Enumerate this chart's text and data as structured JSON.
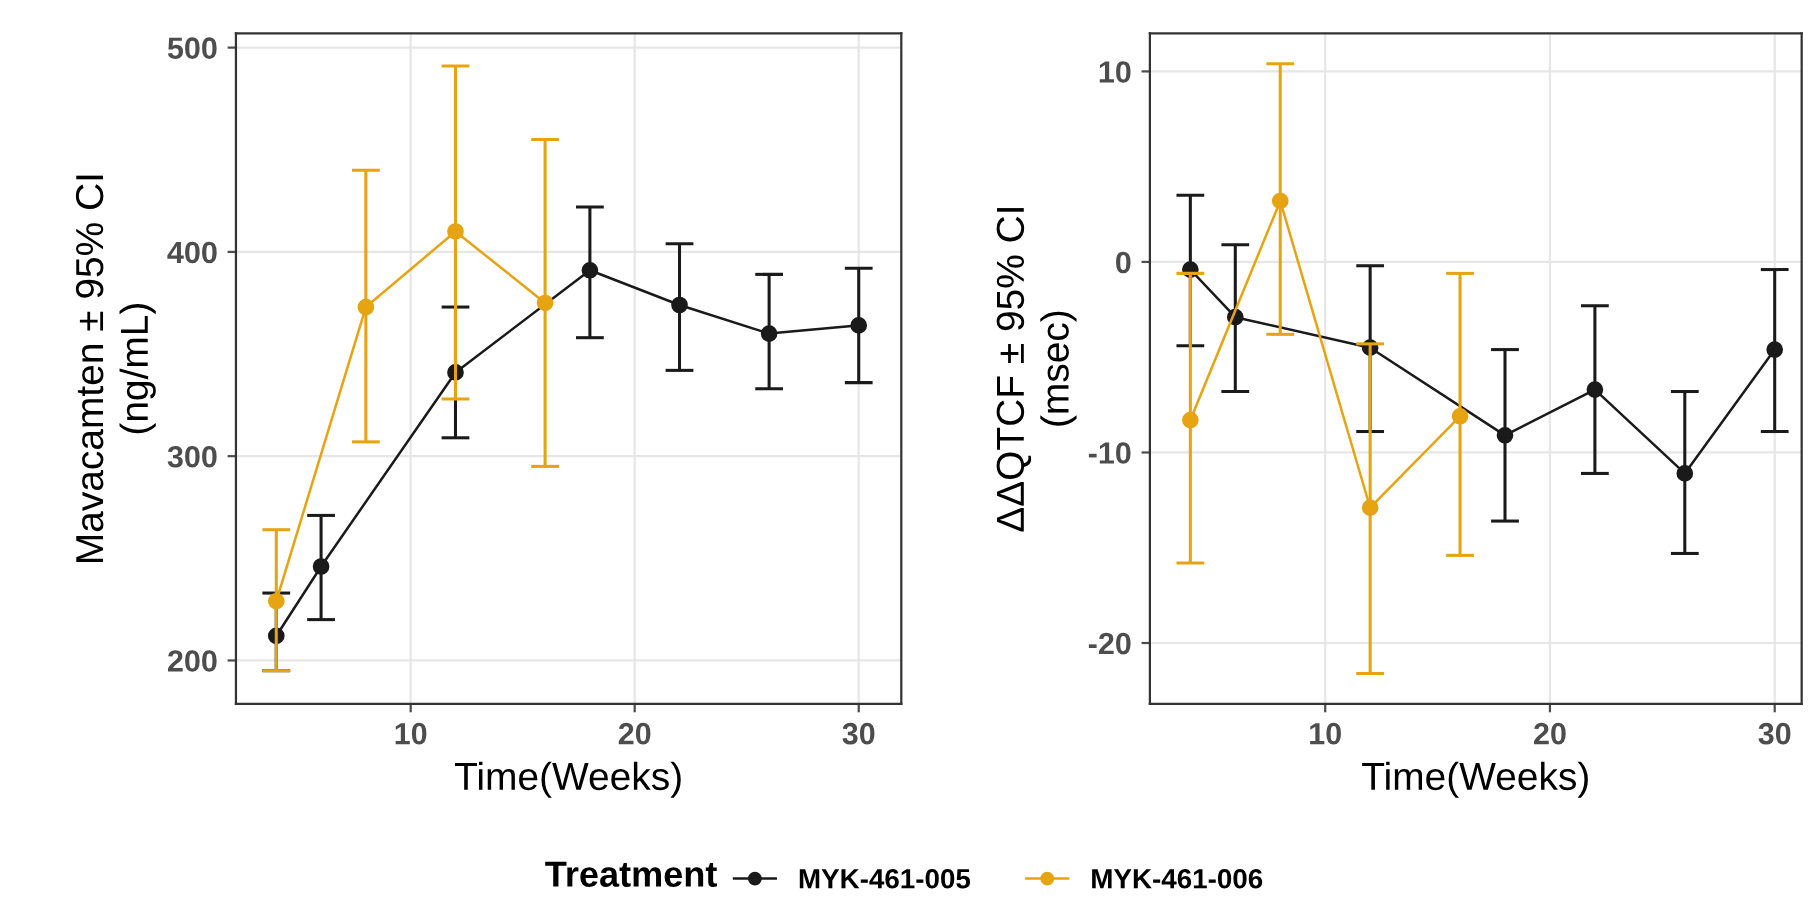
{
  "chart_data": [
    {
      "type": "line",
      "xlabel": "Time(Weeks)",
      "ylabel": "Mavacamten ± 95% CI\n(ng/mL)",
      "legend_title": "Treatment",
      "legend": "bottom",
      "marker": "circle",
      "grid": true,
      "xlim": [
        2.2,
        31.9
      ],
      "xticks": [
        10,
        20,
        30
      ],
      "ylim": [
        178.7,
        507
      ],
      "yticks": [
        200,
        300,
        400,
        500
      ],
      "series": [
        {
          "name": "MYK-461-005",
          "color": "#1a1a1a",
          "x": [
            4,
            6,
            12,
            18,
            22,
            26,
            30
          ],
          "values": [
            212,
            246,
            341,
            391,
            374,
            360,
            364
          ],
          "errors": [
            [
              195,
              233
            ],
            [
              220,
              271
            ],
            [
              309,
              373
            ],
            [
              358,
              422
            ],
            [
              342,
              404
            ],
            [
              333,
              389
            ],
            [
              336,
              392
            ]
          ]
        },
        {
          "name": "MYK-461-006",
          "color": "#e6a312",
          "x": [
            4,
            8,
            12,
            16
          ],
          "values": [
            229,
            373,
            410,
            375
          ],
          "errors": [
            [
              195,
              264
            ],
            [
              307,
              440
            ],
            [
              328,
              491
            ],
            [
              295,
              455
            ]
          ]
        }
      ]
    },
    {
      "type": "line",
      "xlabel": "Time(Weeks)",
      "ylabel": "ΔΔQTCF ± 95% CI\n(msec)",
      "marker": "circle",
      "grid": true,
      "xlim": [
        2.2,
        31.2
      ],
      "xticks": [
        10,
        20,
        30
      ],
      "ylim": [
        -23.2,
        12.0
      ],
      "yticks": [
        -20,
        -10,
        0,
        10
      ],
      "series": [
        {
          "name": "MYK-461-005",
          "color": "#1a1a1a",
          "x": [
            4,
            6,
            12,
            18,
            22,
            26,
            30
          ],
          "values": [
            -0.4,
            -2.9,
            -4.5,
            -9.1,
            -6.7,
            -11.1,
            -4.6
          ],
          "errors": [
            [
              -4.4,
              3.5
            ],
            [
              -6.8,
              0.9
            ],
            [
              -8.9,
              -0.2
            ],
            [
              -13.6,
              -4.6
            ],
            [
              -11.1,
              -2.3
            ],
            [
              -15.3,
              -6.8
            ],
            [
              -8.9,
              -0.4
            ]
          ]
        },
        {
          "name": "MYK-461-006",
          "color": "#e6a312",
          "x": [
            4,
            8,
            12,
            16
          ],
          "values": [
            -8.3,
            3.2,
            -12.9,
            -8.1
          ],
          "errors": [
            [
              -15.8,
              -0.6
            ],
            [
              -3.8,
              10.4
            ],
            [
              -21.6,
              -4.3
            ],
            [
              -15.4,
              -0.6
            ]
          ]
        }
      ]
    }
  ]
}
